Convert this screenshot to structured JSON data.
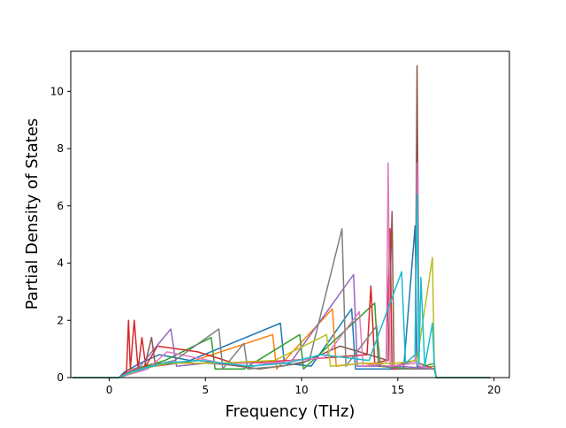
{
  "chart_data": {
    "type": "line",
    "title": "",
    "xlabel": "Frequency (THz)",
    "ylabel": "Partial Density of States",
    "xlim": [
      -2.0,
      20.8
    ],
    "ylim": [
      0,
      11.4
    ],
    "xticks": [
      0,
      5,
      10,
      15,
      20
    ],
    "yticks": [
      0,
      2,
      4,
      6,
      8,
      10
    ],
    "xtick_labels": [
      "0",
      "5",
      "10",
      "15",
      "20"
    ],
    "ytick_labels": [
      "0",
      "2",
      "4",
      "6",
      "8",
      "10"
    ],
    "grid": false,
    "legend": "none",
    "series_colors": [
      "#1f77b4",
      "#ff7f0e",
      "#2ca02c",
      "#d62728",
      "#9467bd",
      "#8c564b",
      "#e377c2",
      "#7f7f7f",
      "#bcbd22",
      "#17becf"
    ],
    "series": [
      {
        "values": [
          [
            -1.9,
            0
          ],
          [
            0.5,
            0
          ],
          [
            0.8,
            0.2
          ],
          [
            1.6,
            0.5
          ],
          [
            2.6,
            0.8
          ],
          [
            4.2,
            0.6
          ],
          [
            8.9,
            1.9
          ],
          [
            9.1,
            0.5
          ],
          [
            10.5,
            0.4
          ],
          [
            12.6,
            2.4
          ],
          [
            12.8,
            0.3
          ],
          [
            15.3,
            0.3
          ],
          [
            15.9,
            5.3
          ],
          [
            16.0,
            0.4
          ],
          [
            16.9,
            0.3
          ],
          [
            17.0,
            0
          ],
          [
            19.8,
            0
          ]
        ]
      },
      {
        "values": [
          [
            -1.9,
            0
          ],
          [
            0.5,
            0
          ],
          [
            1.2,
            0.3
          ],
          [
            2.4,
            0.5
          ],
          [
            4.0,
            0.5
          ],
          [
            8.5,
            1.5
          ],
          [
            8.7,
            0.3
          ],
          [
            11.6,
            2.4
          ],
          [
            11.8,
            0.4
          ],
          [
            13.2,
            0.5
          ],
          [
            15.5,
            0.3
          ],
          [
            16.9,
            0.4
          ],
          [
            17.0,
            0
          ],
          [
            19.8,
            0
          ]
        ]
      },
      {
        "values": [
          [
            -1.9,
            0
          ],
          [
            0.5,
            0
          ],
          [
            1.4,
            0.3
          ],
          [
            2.9,
            0.6
          ],
          [
            5.3,
            1.4
          ],
          [
            5.5,
            0.3
          ],
          [
            7.0,
            0.3
          ],
          [
            9.9,
            1.5
          ],
          [
            10.1,
            0.3
          ],
          [
            13.8,
            2.6
          ],
          [
            14.0,
            0.4
          ],
          [
            15.8,
            0.3
          ],
          [
            16.9,
            0.5
          ],
          [
            17.0,
            0
          ],
          [
            19.8,
            0
          ]
        ]
      },
      {
        "values": [
          [
            -1.9,
            0
          ],
          [
            0.5,
            0
          ],
          [
            0.9,
            0.2
          ],
          [
            1.0,
            2.0
          ],
          [
            1.1,
            0.3
          ],
          [
            1.3,
            2.0
          ],
          [
            1.5,
            0.3
          ],
          [
            1.7,
            1.4
          ],
          [
            1.9,
            0.4
          ],
          [
            2.5,
            1.1
          ],
          [
            4.6,
            0.9
          ],
          [
            6.5,
            0.5
          ],
          [
            9.4,
            0.6
          ],
          [
            13.4,
            0.8
          ],
          [
            13.6,
            3.2
          ],
          [
            13.8,
            0.5
          ],
          [
            14.4,
            0.6
          ],
          [
            14.6,
            5.2
          ],
          [
            14.7,
            0.3
          ],
          [
            16.9,
            0.3
          ],
          [
            17.0,
            0
          ],
          [
            19.8,
            0
          ]
        ]
      },
      {
        "values": [
          [
            -1.9,
            0
          ],
          [
            0.5,
            0
          ],
          [
            1.6,
            0.4
          ],
          [
            3.2,
            1.7
          ],
          [
            3.5,
            0.4
          ],
          [
            5.0,
            0.5
          ],
          [
            7.5,
            0.4
          ],
          [
            9.5,
            0.6
          ],
          [
            12.7,
            3.6
          ],
          [
            12.9,
            0.4
          ],
          [
            15.0,
            0.4
          ],
          [
            16.9,
            0.3
          ],
          [
            17.0,
            0
          ],
          [
            19.8,
            0
          ]
        ]
      },
      {
        "values": [
          [
            -1.9,
            0
          ],
          [
            0.5,
            0
          ],
          [
            1.8,
            0.3
          ],
          [
            2.2,
            1.4
          ],
          [
            2.4,
            0.4
          ],
          [
            4.6,
            0.6
          ],
          [
            7.8,
            0.3
          ],
          [
            10.0,
            0.5
          ],
          [
            12.0,
            1.1
          ],
          [
            14.5,
            0.6
          ],
          [
            14.7,
            5.8
          ],
          [
            14.8,
            0.4
          ],
          [
            15.9,
            0.6
          ],
          [
            16.0,
            10.9
          ],
          [
            16.1,
            0.5
          ],
          [
            16.9,
            0.3
          ],
          [
            17.0,
            0
          ],
          [
            19.8,
            0
          ]
        ]
      },
      {
        "values": [
          [
            -1.9,
            0
          ],
          [
            0.5,
            0
          ],
          [
            2.0,
            0.3
          ],
          [
            3.0,
            0.9
          ],
          [
            5.9,
            0.5
          ],
          [
            8.2,
            0.5
          ],
          [
            11.2,
            0.7
          ],
          [
            13.0,
            2.3
          ],
          [
            13.2,
            0.4
          ],
          [
            14.4,
            0.5
          ],
          [
            14.5,
            7.5
          ],
          [
            14.6,
            0.4
          ],
          [
            15.9,
            0.5
          ],
          [
            16.0,
            7.5
          ],
          [
            16.1,
            0.4
          ],
          [
            16.9,
            0.3
          ],
          [
            17.0,
            0
          ],
          [
            19.8,
            0
          ]
        ]
      },
      {
        "values": [
          [
            -1.9,
            0
          ],
          [
            0.5,
            0
          ],
          [
            1.5,
            0.3
          ],
          [
            3.4,
            0.6
          ],
          [
            5.7,
            1.7
          ],
          [
            5.9,
            0.3
          ],
          [
            7.0,
            1.2
          ],
          [
            7.2,
            0.3
          ],
          [
            9.0,
            0.4
          ],
          [
            10.4,
            0.6
          ],
          [
            12.1,
            5.2
          ],
          [
            12.3,
            0.4
          ],
          [
            13.9,
            1.8
          ],
          [
            14.1,
            0.4
          ],
          [
            15.2,
            0.3
          ],
          [
            16.9,
            0.3
          ],
          [
            17.0,
            0
          ],
          [
            19.8,
            0
          ]
        ]
      },
      {
        "values": [
          [
            -1.9,
            0
          ],
          [
            0.5,
            0
          ],
          [
            1.7,
            0.3
          ],
          [
            3.1,
            0.5
          ],
          [
            5.4,
            0.5
          ],
          [
            8.6,
            0.6
          ],
          [
            11.3,
            1.5
          ],
          [
            11.5,
            0.4
          ],
          [
            13.2,
            0.5
          ],
          [
            14.9,
            0.5
          ],
          [
            16.0,
            0.6
          ],
          [
            16.8,
            4.2
          ],
          [
            16.9,
            0.4
          ],
          [
            17.0,
            0
          ],
          [
            19.8,
            0
          ]
        ]
      },
      {
        "values": [
          [
            -1.9,
            0
          ],
          [
            0.5,
            0
          ],
          [
            1.2,
            0.2
          ],
          [
            2.8,
            0.5
          ],
          [
            4.7,
            0.6
          ],
          [
            7.3,
            0.4
          ],
          [
            9.2,
            0.5
          ],
          [
            11.0,
            0.8
          ],
          [
            13.5,
            0.6
          ],
          [
            15.2,
            3.7
          ],
          [
            15.4,
            0.5
          ],
          [
            15.9,
            0.8
          ],
          [
            16.0,
            6.4
          ],
          [
            16.1,
            0.5
          ],
          [
            16.2,
            3.5
          ],
          [
            16.4,
            0.4
          ],
          [
            16.8,
            1.9
          ],
          [
            16.9,
            0.3
          ],
          [
            17.0,
            0
          ],
          [
            19.8,
            0
          ]
        ]
      }
    ]
  }
}
